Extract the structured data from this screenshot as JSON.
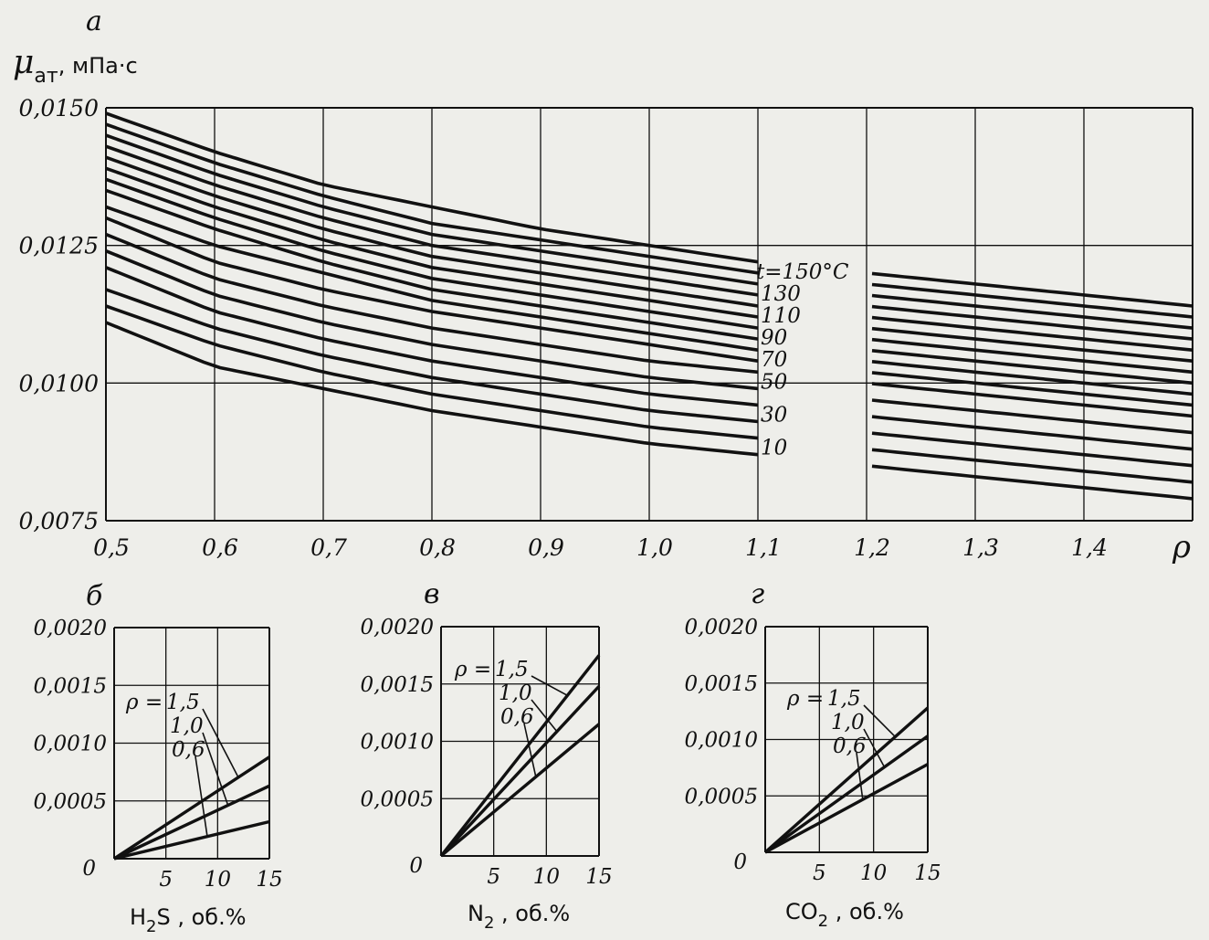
{
  "panels": {
    "a": {
      "letter": "а",
      "y_title_main": "μ",
      "y_title_sub": "ат",
      "y_title_unit": ", мПа·с",
      "x_title": "ρ"
    },
    "b": {
      "letter": "б",
      "x_title_main": "H",
      "x_title_sub": "2",
      "x_title_rest": "S , об.%"
    },
    "v": {
      "letter": "в",
      "x_title_main": "N",
      "x_title_sub": "2",
      "x_title_rest": " , об.%"
    },
    "g": {
      "letter": "г",
      "x_title_main": "CO",
      "x_title_sub": "2",
      "x_title_rest": " , об.%"
    }
  },
  "chart_data": [
    {
      "panel": "а",
      "type": "line",
      "xlabel": "ρ",
      "ylabel": "μат, мПа·с",
      "xlim": [
        0.5,
        1.5
      ],
      "ylim": [
        0.0075,
        0.015
      ],
      "x_ticks": [
        "0,5",
        "0,6",
        "0,7",
        "0,8",
        "0,9",
        "1,0",
        "1,1",
        "1,2",
        "1,3",
        "1,4"
      ],
      "y_ticks": [
        "0,0075",
        "0,0100",
        "0,0125",
        "0,0150"
      ],
      "grid": true,
      "series_labels": [
        "t=150°C",
        "130",
        "110",
        "90",
        "70",
        "50",
        "30",
        "10"
      ],
      "x": [
        0.5,
        0.6,
        0.7,
        0.8,
        0.9,
        1.0,
        1.1,
        1.2,
        1.3,
        1.4,
        1.5
      ],
      "series": [
        {
          "name": "t=150°C",
          "values": [
            0.0149,
            0.0142,
            0.0136,
            0.0132,
            0.0128,
            0.0125,
            0.0122,
            0.012,
            0.0118,
            0.0116,
            0.0114
          ]
        },
        {
          "values": [
            0.0147,
            0.014,
            0.0134,
            0.0129,
            0.0126,
            0.0123,
            0.012,
            0.0118,
            0.0116,
            0.0114,
            0.0112
          ]
        },
        {
          "name": "130",
          "values": [
            0.0145,
            0.0138,
            0.0132,
            0.0127,
            0.0124,
            0.0121,
            0.0118,
            0.0116,
            0.0114,
            0.0112,
            0.011
          ]
        },
        {
          "values": [
            0.0143,
            0.0136,
            0.013,
            0.0125,
            0.0122,
            0.0119,
            0.0116,
            0.0114,
            0.0112,
            0.011,
            0.0108
          ]
        },
        {
          "name": "110",
          "values": [
            0.0141,
            0.0134,
            0.0128,
            0.0123,
            0.012,
            0.0117,
            0.0114,
            0.0112,
            0.011,
            0.0108,
            0.0106
          ]
        },
        {
          "values": [
            0.0139,
            0.0132,
            0.0126,
            0.0121,
            0.0118,
            0.0115,
            0.0112,
            0.011,
            0.0108,
            0.0106,
            0.0104
          ]
        },
        {
          "name": "90",
          "values": [
            0.0137,
            0.013,
            0.0124,
            0.0119,
            0.0116,
            0.0113,
            0.011,
            0.0108,
            0.0106,
            0.0104,
            0.0102
          ]
        },
        {
          "values": [
            0.0135,
            0.0128,
            0.0122,
            0.0117,
            0.0114,
            0.0111,
            0.0108,
            0.0106,
            0.0104,
            0.0102,
            0.01
          ]
        },
        {
          "name": "70",
          "values": [
            0.0132,
            0.0125,
            0.012,
            0.0115,
            0.0112,
            0.0109,
            0.0106,
            0.0104,
            0.0102,
            0.01,
            0.0098
          ]
        },
        {
          "values": [
            0.013,
            0.0122,
            0.0117,
            0.0113,
            0.011,
            0.0107,
            0.0104,
            0.0102,
            0.01,
            0.0098,
            0.0096
          ]
        },
        {
          "name": "50",
          "values": [
            0.0127,
            0.0119,
            0.0114,
            0.011,
            0.0107,
            0.0104,
            0.0102,
            0.01,
            0.0098,
            0.0096,
            0.0094
          ]
        },
        {
          "values": [
            0.0124,
            0.0116,
            0.0111,
            0.0107,
            0.0104,
            0.0101,
            0.0099,
            0.0097,
            0.0095,
            0.0093,
            0.0091
          ]
        },
        {
          "name": "30",
          "values": [
            0.0121,
            0.0113,
            0.0108,
            0.0104,
            0.0101,
            0.0098,
            0.0096,
            0.0094,
            0.0092,
            0.009,
            0.0088
          ]
        },
        {
          "values": [
            0.0117,
            0.011,
            0.0105,
            0.0101,
            0.0098,
            0.0095,
            0.0093,
            0.0091,
            0.0089,
            0.0087,
            0.0085
          ]
        },
        {
          "name": "10",
          "values": [
            0.0114,
            0.0107,
            0.0102,
            0.0098,
            0.0095,
            0.0092,
            0.009,
            0.0088,
            0.0086,
            0.0084,
            0.0082
          ]
        },
        {
          "values": [
            0.0111,
            0.0103,
            0.0099,
            0.0095,
            0.0092,
            0.0089,
            0.0087,
            0.0085,
            0.0083,
            0.0081,
            0.0079
          ]
        }
      ]
    },
    {
      "panel": "б",
      "type": "line",
      "xlabel": "H2S, об.%",
      "xlim": [
        0,
        15
      ],
      "ylim": [
        0,
        0.002
      ],
      "x_ticks": [
        "0",
        "5",
        "10",
        "15"
      ],
      "y_ticks": [
        "0,0005",
        "0,0010",
        "0,0015",
        "0,0020"
      ],
      "grid": true,
      "label_rho": "ρ =",
      "series": [
        {
          "name": "1,5",
          "x": [
            0,
            15
          ],
          "values": [
            0,
            0.00088
          ]
        },
        {
          "name": "1,0",
          "x": [
            0,
            15
          ],
          "values": [
            0,
            0.00063
          ]
        },
        {
          "name": "0,6",
          "x": [
            0,
            15
          ],
          "values": [
            0,
            0.00032
          ]
        }
      ]
    },
    {
      "panel": "в",
      "type": "line",
      "xlabel": "N2, об.%",
      "xlim": [
        0,
        15
      ],
      "ylim": [
        0,
        0.002
      ],
      "x_ticks": [
        "0",
        "5",
        "10",
        "15"
      ],
      "y_ticks": [
        "0,0005",
        "0,0010",
        "0,0015",
        "0,0020"
      ],
      "grid": true,
      "label_rho": "ρ =",
      "series": [
        {
          "name": "1,5",
          "x": [
            0,
            15
          ],
          "values": [
            0,
            0.00175
          ]
        },
        {
          "name": "1,0",
          "x": [
            0,
            15
          ],
          "values": [
            0,
            0.00148
          ]
        },
        {
          "name": "0,6",
          "x": [
            0,
            15
          ],
          "values": [
            0,
            0.00115
          ]
        }
      ]
    },
    {
      "panel": "г",
      "type": "line",
      "xlabel": "CO2, об.%",
      "xlim": [
        0,
        15
      ],
      "ylim": [
        0,
        0.002
      ],
      "x_ticks": [
        "0",
        "5",
        "10",
        "15"
      ],
      "y_ticks": [
        "0,0005",
        "0,0010",
        "0,0015",
        "0,0020"
      ],
      "grid": true,
      "label_rho": "ρ =",
      "series": [
        {
          "name": "1,5",
          "x": [
            0,
            15
          ],
          "values": [
            0,
            0.00128
          ]
        },
        {
          "name": "1,0",
          "x": [
            0,
            15
          ],
          "values": [
            0,
            0.00103
          ]
        },
        {
          "name": "0,6",
          "x": [
            0,
            15
          ],
          "values": [
            0,
            0.00078
          ]
        }
      ]
    }
  ]
}
